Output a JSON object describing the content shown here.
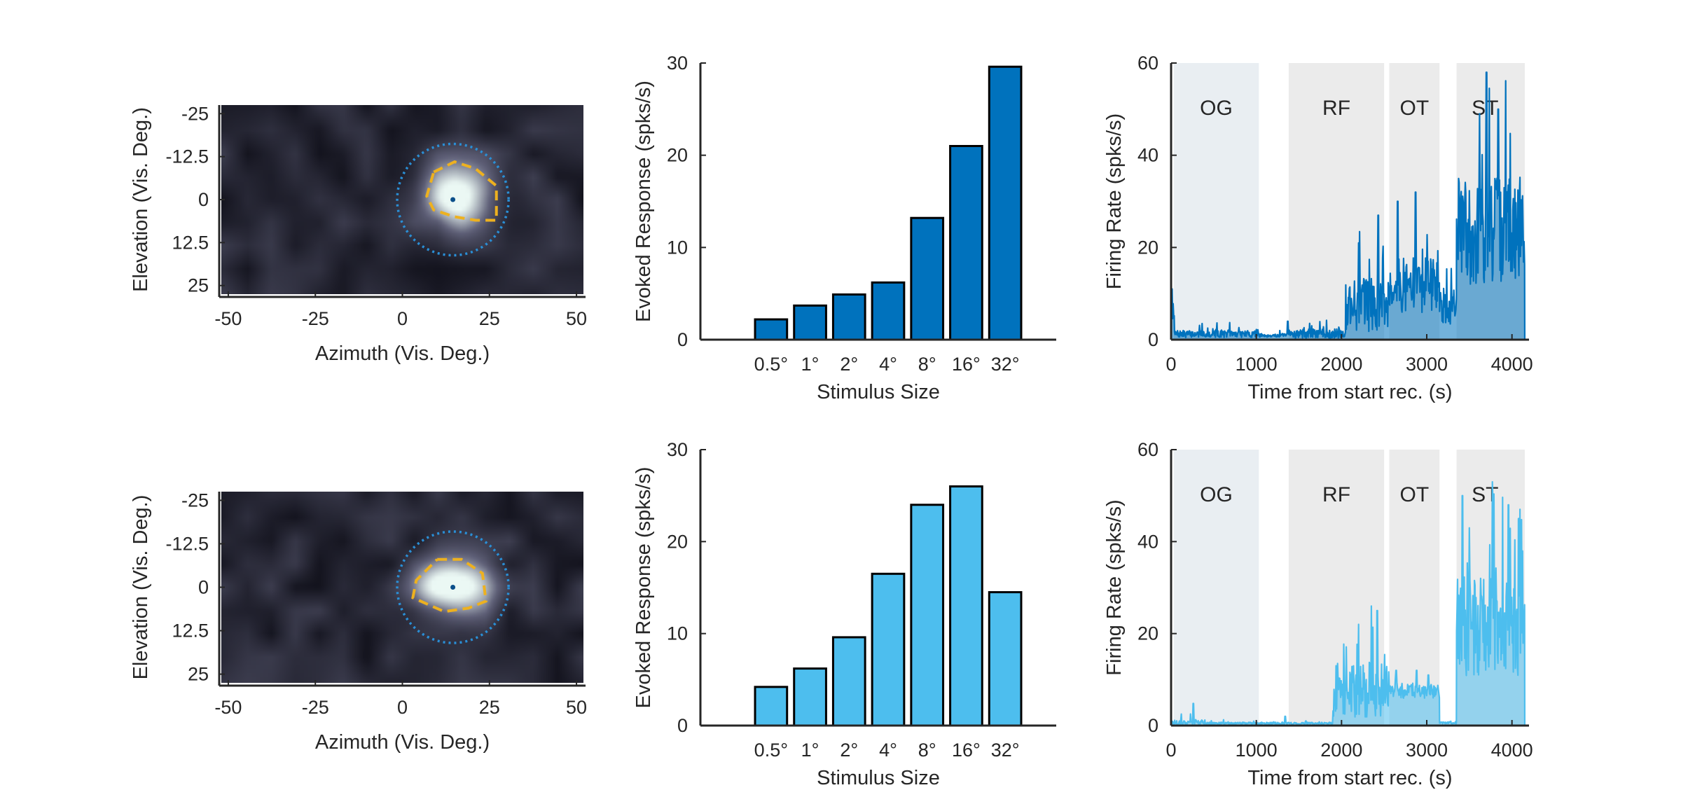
{
  "colors": {
    "dark_blue": "#0072BD",
    "light_blue": "#4DBEEE",
    "text": "#262626",
    "og_band": "#E9EEF2",
    "other_band": "#EBEBEB",
    "outline": "#000000",
    "rf_circle": "#2A8FD6",
    "rf_contour": "#EDB120",
    "rf_center": "#0B4F8A"
  },
  "chart_data": [
    {
      "id": "rf-map-1",
      "type": "heatmap",
      "xlabel": "Azimuth (Vis. Deg.)",
      "ylabel": "Elevation (Vis. Deg.)",
      "xlim": [
        -52,
        52
      ],
      "ylim": [
        -27.5,
        27.5
      ],
      "xticks": [
        -50,
        -25,
        0,
        25,
        50
      ],
      "xtick_labels": [
        "-50",
        "-25",
        "0",
        "25",
        "50"
      ],
      "yticks": [
        -25,
        -12.5,
        0,
        12.5,
        25
      ],
      "ytick_labels": [
        "-25",
        "-12.5",
        "0",
        "12.5",
        "25"
      ],
      "y_reversed": true,
      "rf_center": [
        14.5,
        0
      ],
      "rf_radius": 16,
      "blobs": [
        {
          "x": 16,
          "y": -1,
          "sigma": 7.5,
          "amp": 1.0
        }
      ],
      "contour_points": [
        [
          9,
          -8
        ],
        [
          15,
          -11
        ],
        [
          21,
          -9
        ],
        [
          27,
          -4
        ],
        [
          27,
          6
        ],
        [
          21,
          6
        ],
        [
          15,
          5
        ],
        [
          9,
          3
        ],
        [
          7,
          -1
        ],
        [
          9,
          -8
        ]
      ],
      "noise_seed": 11
    },
    {
      "id": "bar-1",
      "type": "bar",
      "categories": [
        "0.5°",
        "1°",
        "2°",
        "4°",
        "8°",
        "16°",
        "32°"
      ],
      "values": [
        2.2,
        3.7,
        4.9,
        6.2,
        13.2,
        21.0,
        29.6
      ],
      "xlabel": "Stimulus Size",
      "ylabel": "Evoked Response (spks/s)",
      "ylim": [
        0,
        30
      ],
      "yticks": [
        0,
        10,
        20,
        30
      ],
      "ytick_labels": [
        "0",
        "10",
        "20",
        "30"
      ],
      "color": "#0072BD"
    },
    {
      "id": "rate-1",
      "type": "area",
      "xlabel": "Time from start rec. (s)",
      "ylabel": "Firing Rate (spks/s)",
      "xlim": [
        0,
        4200
      ],
      "ylim": [
        0,
        60
      ],
      "xticks": [
        0,
        1000,
        2000,
        3000,
        4000
      ],
      "xtick_labels": [
        "0",
        "1000",
        "2000",
        "3000",
        "4000"
      ],
      "yticks": [
        0,
        20,
        40,
        60
      ],
      "ytick_labels": [
        "0",
        "20",
        "40",
        "60"
      ],
      "epochs": [
        {
          "label": "OG",
          "start": 30,
          "end": 1030
        },
        {
          "label": "RF",
          "start": 1380,
          "end": 2500
        },
        {
          "label": "OT",
          "start": 2560,
          "end": 3150
        },
        {
          "label": "ST",
          "start": 3350,
          "end": 4150
        }
      ],
      "segments": [
        {
          "start": 0,
          "end": 40,
          "base": 4,
          "amp": 6,
          "spikes": [
            [
              10,
              11
            ]
          ]
        },
        {
          "start": 40,
          "end": 1030,
          "base": 1,
          "amp": 1.5,
          "spikes": []
        },
        {
          "start": 1030,
          "end": 1380,
          "base": 0.8,
          "amp": 0.8,
          "spikes": [
            [
              1370,
              4
            ]
          ]
        },
        {
          "start": 1380,
          "end": 2050,
          "base": 1,
          "amp": 2,
          "spikes": []
        },
        {
          "start": 2050,
          "end": 2560,
          "base": 6,
          "amp": 12,
          "spikes": [
            [
              2200,
              21
            ],
            [
              2430,
              27
            ]
          ]
        },
        {
          "start": 2560,
          "end": 3150,
          "base": 10,
          "amp": 12,
          "spikes": [
            [
              2660,
              30
            ],
            [
              2870,
              32
            ]
          ]
        },
        {
          "start": 3150,
          "end": 3350,
          "base": 6,
          "amp": 8,
          "spikes": []
        },
        {
          "start": 3350,
          "end": 4150,
          "base": 20,
          "amp": 24,
          "spikes": [
            [
              3700,
              58
            ],
            [
              3840,
              50
            ],
            [
              3620,
              49
            ]
          ]
        }
      ],
      "color": "#0072BD",
      "noise_seed": 7
    },
    {
      "id": "rf-map-2",
      "type": "heatmap",
      "xlabel": "Azimuth (Vis. Deg.)",
      "ylabel": "Elevation (Vis. Deg.)",
      "xlim": [
        -52,
        52
      ],
      "ylim": [
        -27.5,
        27.5
      ],
      "xticks": [
        -50,
        -25,
        0,
        25,
        50
      ],
      "xtick_labels": [
        "-50",
        "-25",
        "0",
        "25",
        "50"
      ],
      "yticks": [
        -25,
        -12.5,
        0,
        12.5,
        25
      ],
      "ytick_labels": [
        "-25",
        "-12.5",
        "0",
        "12.5",
        "25"
      ],
      "y_reversed": true,
      "rf_center": [
        14.5,
        0
      ],
      "rf_radius": 16,
      "blobs": [
        {
          "x": 17,
          "y": -1,
          "sigma": 7,
          "amp": 0.9
        },
        {
          "x": 7,
          "y": 0,
          "sigma": 5,
          "amp": 0.45
        }
      ],
      "contour_points": [
        [
          10,
          -8
        ],
        [
          17,
          -8
        ],
        [
          23,
          -4
        ],
        [
          24,
          4
        ],
        [
          19,
          6
        ],
        [
          12,
          7
        ],
        [
          3,
          3
        ],
        [
          4,
          -2
        ],
        [
          10,
          -8
        ]
      ],
      "noise_seed": 23
    },
    {
      "id": "bar-2",
      "type": "bar",
      "categories": [
        "0.5°",
        "1°",
        "2°",
        "4°",
        "8°",
        "16°",
        "32°"
      ],
      "values": [
        4.2,
        6.2,
        9.6,
        16.5,
        24.0,
        26.0,
        14.5
      ],
      "xlabel": "Stimulus Size",
      "ylabel": "Evoked Response (spks/s)",
      "ylim": [
        0,
        30
      ],
      "yticks": [
        0,
        10,
        20,
        30
      ],
      "ytick_labels": [
        "0",
        "10",
        "20",
        "30"
      ],
      "color": "#4DBEEE"
    },
    {
      "id": "rate-2",
      "type": "area",
      "xlabel": "Time from start rec. (s)",
      "ylabel": "Firing Rate (spks/s)",
      "xlim": [
        0,
        4200
      ],
      "ylim": [
        0,
        60
      ],
      "xticks": [
        0,
        1000,
        2000,
        3000,
        4000
      ],
      "xtick_labels": [
        "0",
        "1000",
        "2000",
        "3000",
        "4000"
      ],
      "yticks": [
        0,
        20,
        40,
        60
      ],
      "ytick_labels": [
        "0",
        "20",
        "40",
        "60"
      ],
      "epochs": [
        {
          "label": "OG",
          "start": 30,
          "end": 1030
        },
        {
          "label": "RF",
          "start": 1380,
          "end": 2500
        },
        {
          "label": "OT",
          "start": 2560,
          "end": 3150
        },
        {
          "label": "ST",
          "start": 3350,
          "end": 4150
        }
      ],
      "segments": [
        {
          "start": 0,
          "end": 400,
          "base": 0.5,
          "amp": 1.2,
          "spikes": [
            [
              260,
              4.8
            ],
            [
              120,
              2.5
            ]
          ]
        },
        {
          "start": 400,
          "end": 1900,
          "base": 0.4,
          "amp": 0.5,
          "spikes": [
            [
              1340,
              2
            ]
          ]
        },
        {
          "start": 1900,
          "end": 2560,
          "base": 6,
          "amp": 12,
          "spikes": [
            [
              2350,
              26
            ],
            [
              2420,
              25
            ],
            [
              2200,
              22
            ]
          ]
        },
        {
          "start": 2560,
          "end": 3150,
          "base": 7,
          "amp": 3,
          "spikes": [
            [
              2640,
              12
            ],
            [
              2880,
              12
            ],
            [
              3020,
              11
            ]
          ]
        },
        {
          "start": 3150,
          "end": 3350,
          "base": 0.5,
          "amp": 0.5,
          "spikes": []
        },
        {
          "start": 3350,
          "end": 4150,
          "base": 18,
          "amp": 22,
          "spikes": [
            [
              3420,
              50
            ],
            [
              3770,
              53
            ],
            [
              3960,
              48
            ],
            [
              4080,
              45
            ]
          ]
        }
      ],
      "color": "#4DBEEE",
      "noise_seed": 17
    }
  ]
}
